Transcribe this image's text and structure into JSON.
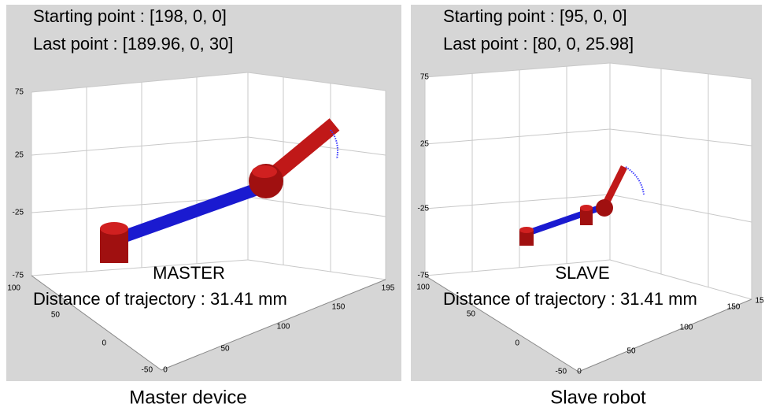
{
  "panels": [
    {
      "starting_point": "Starting point : [198, 0, 0]",
      "last_point": "Last point : [189.96, 0, 30]",
      "label": "MASTER",
      "distance": "Distance of trajectory : 31.41 mm",
      "z_ticks": [
        "75",
        "25",
        "-25",
        "-75"
      ],
      "y_ticks": [
        "100",
        "50",
        "0",
        "-50"
      ],
      "x_ticks": [
        "0",
        "50",
        "100",
        "150",
        "195"
      ],
      "caption": "Master device"
    },
    {
      "starting_point": "Starting point : [95, 0, 0]",
      "last_point": "Last point : [80, 0, 25.98]",
      "label": "SLAVE",
      "distance": "Distance of trajectory : 31.41 mm",
      "z_ticks": [
        "75",
        "25",
        "-25",
        "-75"
      ],
      "y_ticks": [
        "100",
        "50",
        "0",
        "-50"
      ],
      "x_ticks": [
        "0",
        "50",
        "100",
        "150",
        "15"
      ],
      "caption": "Slave robot"
    }
  ]
}
